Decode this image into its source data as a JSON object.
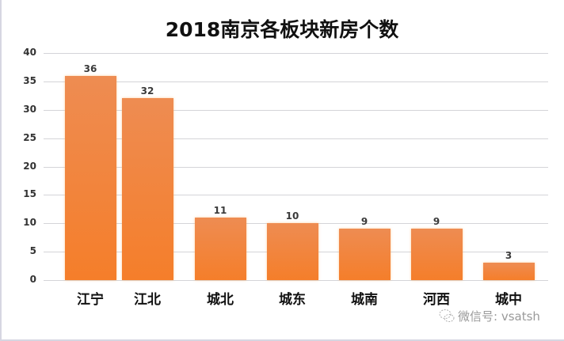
{
  "chart_data": {
    "type": "bar",
    "title": "2018南京各板块新房个数",
    "categories": [
      "江宁",
      "江北",
      "城北",
      "城东",
      "城南",
      "河西",
      "城中"
    ],
    "values": [
      36,
      32,
      11,
      10,
      9,
      9,
      3
    ],
    "xlabel": "",
    "ylabel": "",
    "ylim": [
      0,
      40
    ],
    "yticks": [
      0,
      5,
      10,
      15,
      20,
      25,
      30,
      35,
      40
    ],
    "grid": true,
    "legend": null,
    "data_labels": true,
    "bar_color": "#f28540"
  },
  "watermark": {
    "text": "微信号: vsatsh",
    "icon": "wechat-icon"
  }
}
